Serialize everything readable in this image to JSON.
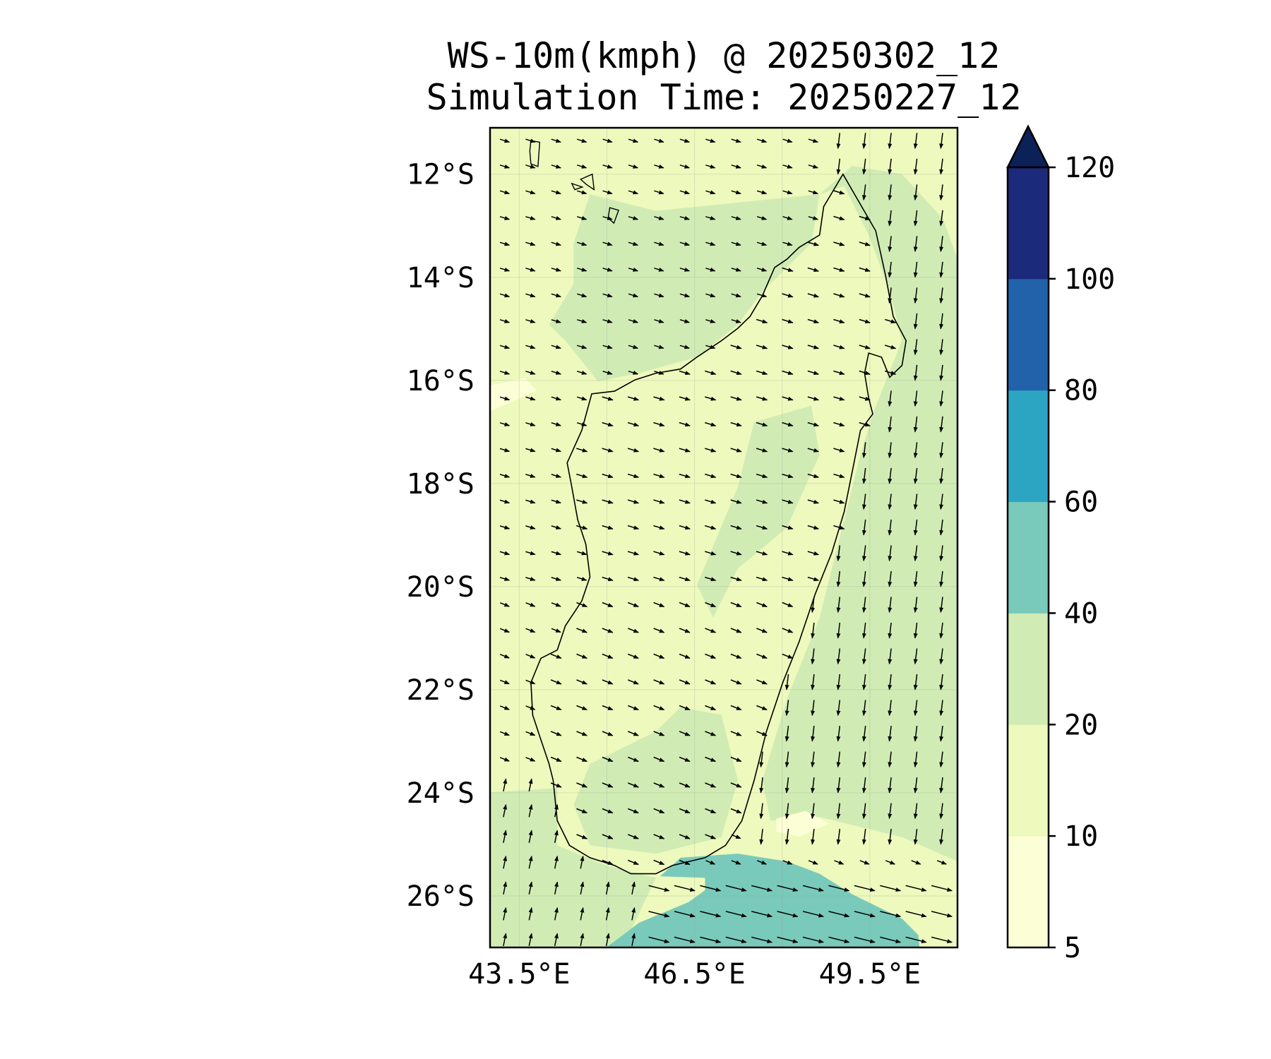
{
  "title": "WS-10m(kmph) @ 20250302_12",
  "subtitle": "Simulation Time: 20250227_12",
  "chart_data": {
    "type": "filled-contour-map-with-wind-vectors",
    "variable": "10 m wind speed",
    "units": "kmph",
    "extent": {
      "lon": [
        43,
        51
      ],
      "lat": [
        -27,
        -11.1
      ]
    },
    "lat_ticks": [
      {
        "value": -12,
        "label": "12°S"
      },
      {
        "value": -14,
        "label": "14°S"
      },
      {
        "value": -16,
        "label": "16°S"
      },
      {
        "value": -18,
        "label": "18°S"
      },
      {
        "value": -20,
        "label": "20°S"
      },
      {
        "value": -22,
        "label": "22°S"
      },
      {
        "value": -24,
        "label": "24°S"
      },
      {
        "value": -26,
        "label": "26°S"
      }
    ],
    "lon_ticks": [
      {
        "value": 43.5,
        "label": "43.5°E"
      },
      {
        "value": 46.5,
        "label": "46.5°E"
      },
      {
        "value": 49.5,
        "label": "49.5°E"
      }
    ],
    "grid_lon": [
      43.5,
      45,
      46.5,
      48,
      49.5,
      51
    ],
    "grid_lat": [
      -12,
      -14,
      -16,
      -18,
      -20,
      -22,
      -24,
      -26
    ],
    "colorbar": {
      "levels": [
        5,
        10,
        20,
        40,
        60,
        80,
        100,
        120
      ],
      "labels": [
        "5",
        "10",
        "20",
        "40",
        "60",
        "80",
        "100",
        "120"
      ],
      "colors": [
        "#fcffd6",
        "#eef9bd",
        "#d0ecb4",
        "#79cabb",
        "#2ca5c3",
        "#2262aa",
        "#1c2a7c"
      ],
      "extend_color": "#0c2157",
      "extend": "max"
    },
    "background_level_color": "#eef9bd",
    "regions": [
      {
        "name": "ne-ocean-20-40",
        "color": "#d0ecb4",
        "points": [
          [
            48.64,
            -12.39
          ],
          [
            49.2,
            -11.84
          ],
          [
            50.05,
            -12.0
          ],
          [
            50.75,
            -12.86
          ],
          [
            51,
            -13.65
          ],
          [
            51,
            -25.33
          ],
          [
            50.05,
            -24.86
          ],
          [
            48.64,
            -24.47
          ],
          [
            47.8,
            -24.54
          ],
          [
            47.66,
            -23.76
          ],
          [
            48.08,
            -22.18
          ],
          [
            48.64,
            -20.6
          ],
          [
            49.06,
            -18.7
          ],
          [
            49.34,
            -17.44
          ],
          [
            49.55,
            -16.65
          ],
          [
            49.77,
            -16.02
          ],
          [
            50.05,
            -15.23
          ],
          [
            49.84,
            -14.28
          ],
          [
            49.48,
            -13.18
          ],
          [
            49.06,
            -12.23
          ]
        ]
      },
      {
        "name": "nw-channel-20-40",
        "color": "#d0ecb4",
        "points": [
          [
            44.43,
            -13.34
          ],
          [
            44.71,
            -12.39
          ],
          [
            45.84,
            -12.71
          ],
          [
            47.24,
            -12.55
          ],
          [
            48.64,
            -12.39
          ],
          [
            48.5,
            -13.34
          ],
          [
            47.66,
            -14.28
          ],
          [
            47.24,
            -14.92
          ],
          [
            46.54,
            -15.55
          ],
          [
            45.55,
            -15.86
          ],
          [
            44.85,
            -16.02
          ],
          [
            44.29,
            -15.23
          ],
          [
            44.01,
            -14.92
          ],
          [
            44.43,
            -14.13
          ]
        ]
      },
      {
        "name": "sw-20-40",
        "color": "#d0ecb4",
        "points": [
          [
            43,
            -23.99
          ],
          [
            44.15,
            -23.91
          ],
          [
            44.15,
            -25.02
          ],
          [
            44.99,
            -25.41
          ],
          [
            45.84,
            -25.65
          ],
          [
            45.27,
            -27
          ],
          [
            43,
            -27
          ]
        ]
      },
      {
        "name": "south-land-20-40",
        "color": "#d0ecb4",
        "points": [
          [
            44.71,
            -23.44
          ],
          [
            45.84,
            -22.81
          ],
          [
            46.26,
            -22.34
          ],
          [
            46.96,
            -22.49
          ],
          [
            47.24,
            -23.76
          ],
          [
            46.96,
            -24.86
          ],
          [
            45.84,
            -25.18
          ],
          [
            44.71,
            -25.02
          ],
          [
            44.43,
            -24.23
          ]
        ]
      },
      {
        "name": "central-land-20-40",
        "color": "#d0ecb4",
        "points": [
          [
            47.52,
            -16.81
          ],
          [
            48.5,
            -16.49
          ],
          [
            48.64,
            -17.44
          ],
          [
            48.08,
            -18.86
          ],
          [
            47.24,
            -19.65
          ],
          [
            46.82,
            -20.6
          ],
          [
            46.54,
            -19.97
          ],
          [
            47.24,
            -18.07
          ]
        ]
      },
      {
        "name": "se-pale-5-10",
        "color": "#fcffd6",
        "points": [
          [
            47.9,
            -24.5
          ],
          [
            48.4,
            -24.35
          ],
          [
            48.8,
            -24.6
          ],
          [
            48.3,
            -24.85
          ],
          [
            47.9,
            -24.75
          ]
        ]
      },
      {
        "name": "w-pale-5-10",
        "color": "#fcffd6",
        "points": [
          [
            43,
            -16.1
          ],
          [
            43.6,
            -15.95
          ],
          [
            43.8,
            -16.2
          ],
          [
            43.2,
            -16.5
          ],
          [
            43,
            -16.6
          ]
        ]
      },
      {
        "name": "south-ocean-40-60",
        "color": "#79cabb",
        "points": [
          [
            44.99,
            -27
          ],
          [
            45.55,
            -26.52
          ],
          [
            46.4,
            -26.12
          ],
          [
            46.68,
            -25.89
          ],
          [
            46.68,
            -25.65
          ],
          [
            45.91,
            -25.62
          ],
          [
            46.26,
            -25.26
          ],
          [
            47.24,
            -25.18
          ],
          [
            48.08,
            -25.33
          ],
          [
            48.64,
            -25.57
          ],
          [
            49.2,
            -25.97
          ],
          [
            50.05,
            -26.44
          ],
          [
            50.33,
            -26.76
          ],
          [
            50.35,
            -27
          ]
        ]
      }
    ],
    "coastline_madagascar": [
      [
        49.04,
        -12.0
      ],
      [
        49.32,
        -12.55
      ],
      [
        49.6,
        -13.1
      ],
      [
        49.77,
        -13.97
      ],
      [
        49.9,
        -14.76
      ],
      [
        50.12,
        -15.23
      ],
      [
        50.05,
        -15.71
      ],
      [
        49.84,
        -15.94
      ],
      [
        49.7,
        -15.55
      ],
      [
        49.48,
        -15.47
      ],
      [
        49.41,
        -15.86
      ],
      [
        49.48,
        -16.34
      ],
      [
        49.55,
        -16.65
      ],
      [
        49.34,
        -16.97
      ],
      [
        49.2,
        -17.76
      ],
      [
        49.06,
        -18.55
      ],
      [
        48.85,
        -19.34
      ],
      [
        48.57,
        -20.13
      ],
      [
        48.29,
        -21.07
      ],
      [
        48.01,
        -21.86
      ],
      [
        47.73,
        -22.81
      ],
      [
        47.52,
        -23.76
      ],
      [
        47.31,
        -24.54
      ],
      [
        47.03,
        -25.02
      ],
      [
        46.68,
        -25.26
      ],
      [
        46.12,
        -25.41
      ],
      [
        45.84,
        -25.57
      ],
      [
        45.41,
        -25.57
      ],
      [
        45.13,
        -25.41
      ],
      [
        44.71,
        -25.26
      ],
      [
        44.36,
        -25.02
      ],
      [
        44.15,
        -24.54
      ],
      [
        44.08,
        -23.76
      ],
      [
        44.01,
        -23.44
      ],
      [
        43.87,
        -22.97
      ],
      [
        43.73,
        -22.49
      ],
      [
        43.7,
        -21.86
      ],
      [
        43.87,
        -21.39
      ],
      [
        44.15,
        -21.23
      ],
      [
        44.29,
        -20.76
      ],
      [
        44.57,
        -20.28
      ],
      [
        44.71,
        -19.81
      ],
      [
        44.64,
        -19.18
      ],
      [
        44.5,
        -18.7
      ],
      [
        44.4,
        -18.07
      ],
      [
        44.32,
        -17.6
      ],
      [
        44.57,
        -16.97
      ],
      [
        44.74,
        -16.26
      ],
      [
        45.13,
        -16.21
      ],
      [
        45.48,
        -15.99
      ],
      [
        45.84,
        -15.86
      ],
      [
        46.26,
        -15.78
      ],
      [
        46.54,
        -15.55
      ],
      [
        46.96,
        -15.23
      ],
      [
        47.24,
        -14.99
      ],
      [
        47.45,
        -14.76
      ],
      [
        47.66,
        -14.36
      ],
      [
        47.87,
        -13.81
      ],
      [
        48.08,
        -13.65
      ],
      [
        48.29,
        -13.42
      ],
      [
        48.64,
        -13.18
      ],
      [
        48.71,
        -12.63
      ],
      [
        48.92,
        -12.23
      ]
    ],
    "islands": [
      [
        [
          43.7,
          -11.35
        ],
        [
          43.85,
          -11.38
        ],
        [
          43.82,
          -11.85
        ],
        [
          43.7,
          -11.8
        ],
        [
          43.68,
          -11.55
        ]
      ],
      [
        [
          44.4,
          -12.18
        ],
        [
          44.58,
          -12.25
        ],
        [
          44.45,
          -12.3
        ]
      ],
      [
        [
          45.05,
          -12.65
        ],
        [
          45.2,
          -12.7
        ],
        [
          45.12,
          -12.95
        ],
        [
          45.02,
          -12.85
        ]
      ],
      [
        [
          44.55,
          -12.1
        ],
        [
          44.75,
          -12.0
        ],
        [
          44.78,
          -12.3
        ],
        [
          44.65,
          -12.2
        ]
      ]
    ]
  }
}
